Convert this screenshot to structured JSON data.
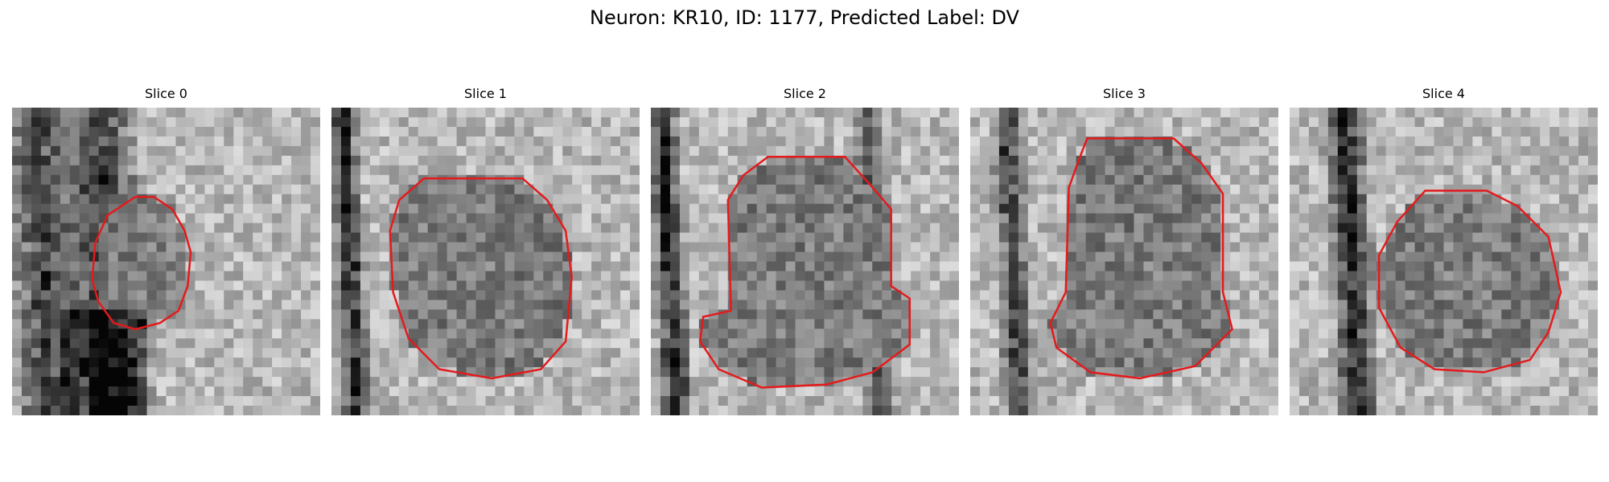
{
  "figure": {
    "title": "Neuron: KR10, ID: 1177, Predicted Label: DV"
  },
  "panels": [
    {
      "title": "Slice 0",
      "outline_color": "#e41a1c",
      "outline": [
        [
          0.4,
          0.29
        ],
        [
          0.46,
          0.29
        ],
        [
          0.52,
          0.33
        ],
        [
          0.56,
          0.4
        ],
        [
          0.58,
          0.47
        ],
        [
          0.57,
          0.58
        ],
        [
          0.54,
          0.66
        ],
        [
          0.48,
          0.7
        ],
        [
          0.4,
          0.72
        ],
        [
          0.33,
          0.7
        ],
        [
          0.28,
          0.63
        ],
        [
          0.26,
          0.56
        ],
        [
          0.27,
          0.44
        ],
        [
          0.31,
          0.35
        ]
      ]
    },
    {
      "title": "Slice 1",
      "outline_color": "#e41a1c",
      "outline": [
        [
          0.3,
          0.23
        ],
        [
          0.62,
          0.23
        ],
        [
          0.7,
          0.3
        ],
        [
          0.76,
          0.4
        ],
        [
          0.78,
          0.55
        ],
        [
          0.76,
          0.76
        ],
        [
          0.68,
          0.85
        ],
        [
          0.52,
          0.88
        ],
        [
          0.35,
          0.85
        ],
        [
          0.25,
          0.75
        ],
        [
          0.2,
          0.6
        ],
        [
          0.19,
          0.4
        ],
        [
          0.22,
          0.3
        ]
      ]
    },
    {
      "title": "Slice 2",
      "outline_color": "#e41a1c",
      "outline": [
        [
          0.38,
          0.16
        ],
        [
          0.63,
          0.16
        ],
        [
          0.72,
          0.26
        ],
        [
          0.78,
          0.33
        ],
        [
          0.78,
          0.58
        ],
        [
          0.84,
          0.62
        ],
        [
          0.84,
          0.77
        ],
        [
          0.72,
          0.86
        ],
        [
          0.57,
          0.9
        ],
        [
          0.36,
          0.91
        ],
        [
          0.22,
          0.85
        ],
        [
          0.16,
          0.76
        ],
        [
          0.17,
          0.68
        ],
        [
          0.26,
          0.66
        ],
        [
          0.25,
          0.3
        ],
        [
          0.3,
          0.22
        ]
      ]
    },
    {
      "title": "Slice 3",
      "outline_color": "#e41a1c",
      "outline": [
        [
          0.38,
          0.1
        ],
        [
          0.66,
          0.1
        ],
        [
          0.75,
          0.18
        ],
        [
          0.82,
          0.28
        ],
        [
          0.82,
          0.6
        ],
        [
          0.85,
          0.72
        ],
        [
          0.73,
          0.84
        ],
        [
          0.55,
          0.88
        ],
        [
          0.39,
          0.86
        ],
        [
          0.28,
          0.78
        ],
        [
          0.26,
          0.7
        ],
        [
          0.31,
          0.6
        ],
        [
          0.32,
          0.26
        ],
        [
          0.36,
          0.15
        ]
      ]
    },
    {
      "title": "Slice 4",
      "outline_color": "#e41a1c",
      "outline": [
        [
          0.44,
          0.27
        ],
        [
          0.64,
          0.27
        ],
        [
          0.74,
          0.32
        ],
        [
          0.84,
          0.42
        ],
        [
          0.88,
          0.6
        ],
        [
          0.84,
          0.73
        ],
        [
          0.78,
          0.82
        ],
        [
          0.63,
          0.86
        ],
        [
          0.47,
          0.85
        ],
        [
          0.36,
          0.78
        ],
        [
          0.29,
          0.65
        ],
        [
          0.29,
          0.48
        ],
        [
          0.35,
          0.37
        ]
      ]
    }
  ]
}
